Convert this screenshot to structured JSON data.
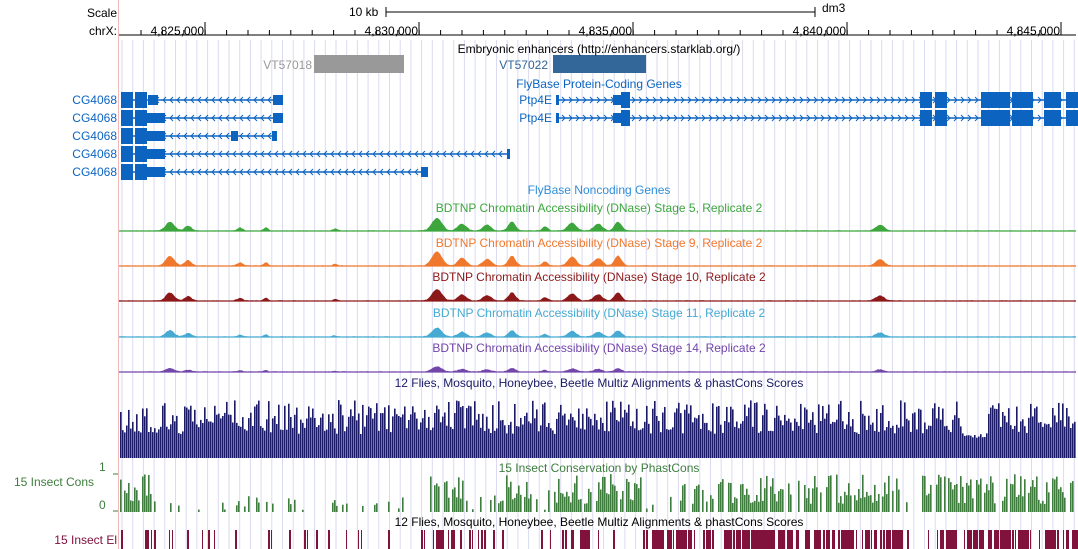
{
  "ruler": {
    "scale_label": "Scale",
    "chrom_label": "chrX:",
    "scale_bar_label": "10 kb",
    "assembly": "dm3",
    "ticks": [
      "4,825,000",
      "4,830,000",
      "4,835,000",
      "4,840,000",
      "4,845,000"
    ]
  },
  "tracks": {
    "enhancers": {
      "title": "Embryonic enhancers (http://enhancers.starklab.org/)",
      "items": [
        "VT57018",
        "VT57022"
      ],
      "colors": [
        "#999999",
        "#336699"
      ]
    },
    "protein_coding": {
      "title": "FlyBase Protein-Coding Genes",
      "genes": [
        "CG4068",
        "CG4068",
        "CG4068",
        "CG4068",
        "CG4068",
        "Ptp4E",
        "Ptp4E"
      ],
      "color": "#0c64c0"
    },
    "noncoding": {
      "title": "FlyBase Noncoding Genes",
      "color": "#2f8ed8"
    },
    "dnase": [
      {
        "title": "BDTNP Chromatin Accessibility (DNase) Stage 5, Replicate 2",
        "color": "#3ca63c"
      },
      {
        "title": "BDTNP Chromatin Accessibility (DNase) Stage 9, Replicate 2",
        "color": "#f0782d"
      },
      {
        "title": "BDTNP Chromatin Accessibility (DNase) Stage 10, Replicate 2",
        "color": "#8c1919"
      },
      {
        "title": "BDTNP Chromatin Accessibility (DNase) Stage 11, Replicate 2",
        "color": "#46aad2"
      },
      {
        "title": "BDTNP Chromatin Accessibility (DNase) Stage 14, Replicate 2",
        "color": "#7346aa"
      }
    ],
    "multiz": {
      "title": "12 Flies, Mosquito, Honeybee, Beetle Multiz Alignments & phastCons Scores",
      "color": "#1a1a66"
    },
    "phastcons": {
      "title": "15 Insect Conservation by PhastCons",
      "side_label": "15 Insect Cons",
      "axis_max": "1",
      "axis_min": "0",
      "color": "#3e7d3e"
    },
    "elements": {
      "title": "12 Flies, Mosquito, Honeybee, Beetle Multiz Alignments & phastCons Scores",
      "side_label": "15 Insect El",
      "color": "#80123c"
    }
  }
}
